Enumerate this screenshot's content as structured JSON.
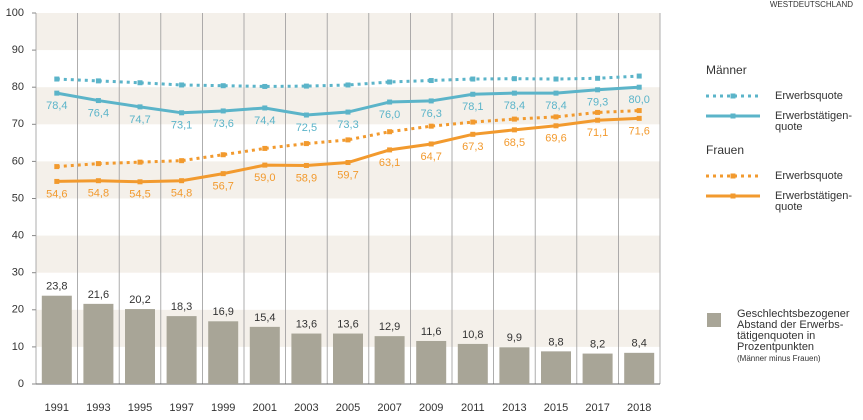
{
  "chart_data": {
    "type": "bar_line",
    "region": "WESTDEUTSCHLAND",
    "categories": [
      "1991",
      "1993",
      "1995",
      "1997",
      "1999",
      "2001",
      "2003",
      "2005",
      "2007",
      "2009",
      "2011",
      "2013",
      "2015",
      "2017",
      "2018"
    ],
    "bars": {
      "name": "Geschlechtsbezogener\nAbstand der Erwerbs-\ntätigenquoten in\nProzentpunkten",
      "note": "(Männer minus Frauen)",
      "color": "#a8a597",
      "values": [
        23.8,
        21.6,
        20.2,
        18.3,
        16.9,
        15.4,
        13.6,
        13.6,
        12.9,
        11.6,
        10.8,
        9.9,
        8.8,
        8.2,
        8.4
      ],
      "value_labels": [
        "23,8",
        "21,6",
        "20,2",
        "18,3",
        "16,9",
        "15,4",
        "13,6",
        "13,6",
        "12,9",
        "11,6",
        "10,8",
        "9,9",
        "8,8",
        "8,2",
        "8,4"
      ]
    },
    "series": [
      {
        "group": "Männer",
        "name": "Erwerbsquote",
        "color": "#5bb4c9",
        "dotted": true,
        "values": [
          82.2,
          81.7,
          81.2,
          80.6,
          80.4,
          80.2,
          80.3,
          80.6,
          81.4,
          81.8,
          82.2,
          82.3,
          82.2,
          82.4,
          83.0
        ]
      },
      {
        "name": "Erwerbstätigen-\nquote",
        "color": "#5bb4c9",
        "dotted": false,
        "values": [
          78.4,
          76.4,
          74.7,
          73.1,
          73.6,
          74.4,
          72.5,
          73.3,
          76.0,
          76.3,
          78.1,
          78.4,
          78.4,
          79.3,
          80.0
        ],
        "value_labels": [
          "78,4",
          "76,4",
          "74,7",
          "73,1",
          "73,6",
          "74,4",
          "72,5",
          "73,3",
          "76,0",
          "76,3",
          "78,1",
          "78,4",
          "78,4",
          "79,3",
          "80,0"
        ]
      },
      {
        "group": "Frauen",
        "name": "Erwerbsquote",
        "color": "#f29a2e",
        "dotted": true,
        "values": [
          58.6,
          59.4,
          59.8,
          60.2,
          61.8,
          63.5,
          64.8,
          65.8,
          68.0,
          69.5,
          70.6,
          71.4,
          72.0,
          73.2,
          73.7
        ]
      },
      {
        "name": "Erwerbstätigen-\nquote",
        "color": "#f29a2e",
        "dotted": false,
        "values": [
          54.6,
          54.8,
          54.5,
          54.8,
          56.7,
          59.0,
          58.9,
          59.7,
          63.1,
          64.7,
          67.3,
          68.5,
          69.6,
          71.1,
          71.6
        ],
        "value_labels": [
          "54,6",
          "54,8",
          "54,5",
          "54,8",
          "56,7",
          "59,0",
          "58,9",
          "59,7",
          "63,1",
          "64,7",
          "67,3",
          "68,5",
          "69,6",
          "71,1",
          "71,6"
        ]
      }
    ],
    "ylim": [
      0,
      100
    ],
    "yticks": [
      0,
      10,
      20,
      30,
      40,
      50,
      60,
      70,
      80,
      90,
      100
    ],
    "banded": true
  }
}
